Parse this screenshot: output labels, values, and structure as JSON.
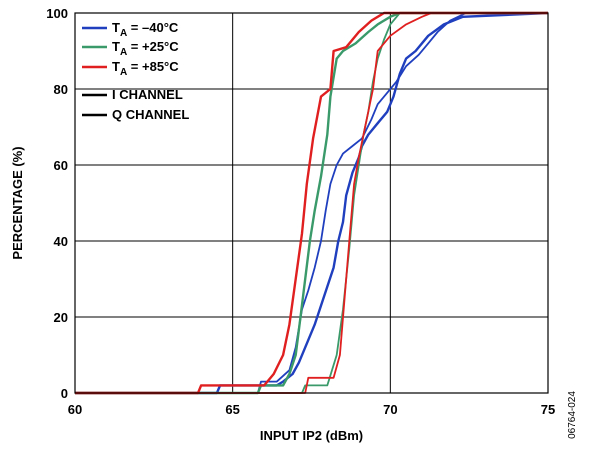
{
  "chart_data": {
    "type": "line",
    "xlabel": "INPUT IP2 (dBm)",
    "ylabel": "PERCENTAGE (%)",
    "xlim": [
      60,
      75
    ],
    "ylim": [
      0,
      100
    ],
    "x_ticks": [
      60,
      65,
      70,
      75
    ],
    "y_ticks": [
      0,
      20,
      40,
      60,
      80,
      100
    ],
    "grid": true,
    "legend_position": "top-left",
    "figure_id": "06764-024",
    "legend": [
      {
        "id": "ta_m40",
        "sub": "A",
        "label_rest": " = –40°C",
        "color": "#1f3fbf"
      },
      {
        "id": "ta_25",
        "sub": "A",
        "label_rest": " = +25°C",
        "color": "#3a9a6a"
      },
      {
        "id": "ta_85",
        "sub": "A",
        "label_rest": " = +85°C",
        "color": "#e02020"
      },
      {
        "id": "i_ch",
        "label": "I CHANNEL",
        "color": "#000000"
      },
      {
        "id": "q_ch",
        "label": "Q CHANNEL",
        "color": "#000000"
      }
    ],
    "series": [
      {
        "temp": "ta_m40",
        "channel": "I",
        "color": "#1f3fbf",
        "points": [
          [
            60,
            0
          ],
          [
            64.5,
            0
          ],
          [
            64.6,
            2
          ],
          [
            66.4,
            2
          ],
          [
            66.6,
            3
          ],
          [
            66.9,
            5
          ],
          [
            67.1,
            8
          ],
          [
            67.3,
            12
          ],
          [
            67.6,
            18
          ],
          [
            67.8,
            23
          ],
          [
            68.0,
            28
          ],
          [
            68.2,
            33
          ],
          [
            68.35,
            40
          ],
          [
            68.5,
            45
          ],
          [
            68.6,
            52
          ],
          [
            68.8,
            58
          ],
          [
            69.0,
            62
          ],
          [
            69.1,
            65
          ],
          [
            69.3,
            68
          ],
          [
            69.6,
            71
          ],
          [
            69.9,
            74
          ],
          [
            70.1,
            78
          ],
          [
            70.3,
            84
          ],
          [
            70.5,
            88
          ],
          [
            70.8,
            90
          ],
          [
            71.2,
            94
          ],
          [
            71.7,
            97
          ],
          [
            72.3,
            99
          ],
          [
            75,
            100
          ]
        ]
      },
      {
        "temp": "ta_m40",
        "channel": "Q",
        "color": "#1f3fbf",
        "points": [
          [
            60,
            0
          ],
          [
            65.8,
            0
          ],
          [
            65.9,
            3
          ],
          [
            66.4,
            3
          ],
          [
            66.8,
            6
          ],
          [
            67.0,
            12
          ],
          [
            67.2,
            22
          ],
          [
            67.4,
            27
          ],
          [
            67.6,
            33
          ],
          [
            67.8,
            40
          ],
          [
            67.95,
            48
          ],
          [
            68.1,
            55
          ],
          [
            68.3,
            60
          ],
          [
            68.5,
            63
          ],
          [
            68.8,
            65
          ],
          [
            69.1,
            67
          ],
          [
            69.4,
            72
          ],
          [
            69.6,
            76
          ],
          [
            69.9,
            79
          ],
          [
            70.2,
            82
          ],
          [
            70.5,
            86
          ],
          [
            70.9,
            89
          ],
          [
            71.2,
            92
          ],
          [
            71.5,
            95
          ],
          [
            71.9,
            98
          ],
          [
            72.4,
            100
          ],
          [
            75,
            100
          ]
        ]
      },
      {
        "temp": "ta_25",
        "channel": "I",
        "color": "#3a9a6a",
        "points": [
          [
            60,
            0
          ],
          [
            65.8,
            0
          ],
          [
            65.9,
            2
          ],
          [
            66.6,
            2
          ],
          [
            66.8,
            5
          ],
          [
            67.0,
            10
          ],
          [
            67.15,
            20
          ],
          [
            67.3,
            30
          ],
          [
            67.45,
            40
          ],
          [
            67.6,
            48
          ],
          [
            67.8,
            57
          ],
          [
            68.0,
            68
          ],
          [
            68.1,
            78
          ],
          [
            68.3,
            88
          ],
          [
            68.5,
            90
          ],
          [
            68.9,
            92
          ],
          [
            69.3,
            95
          ],
          [
            69.6,
            97
          ],
          [
            70.0,
            99
          ],
          [
            70.3,
            100
          ],
          [
            75,
            100
          ]
        ]
      },
      {
        "temp": "ta_25",
        "channel": "Q",
        "color": "#3a9a6a",
        "points": [
          [
            60,
            0
          ],
          [
            67.2,
            0
          ],
          [
            67.3,
            2
          ],
          [
            68.0,
            2
          ],
          [
            68.3,
            10
          ],
          [
            68.5,
            22
          ],
          [
            68.7,
            38
          ],
          [
            68.85,
            52
          ],
          [
            69.0,
            60
          ],
          [
            69.15,
            68
          ],
          [
            69.3,
            74
          ],
          [
            69.45,
            82
          ],
          [
            69.6,
            88
          ],
          [
            69.8,
            93
          ],
          [
            70.0,
            97
          ],
          [
            70.3,
            100
          ],
          [
            75,
            100
          ]
        ]
      },
      {
        "temp": "ta_85",
        "channel": "I",
        "color": "#e02020",
        "points": [
          [
            60,
            0
          ],
          [
            63.9,
            0
          ],
          [
            64.0,
            2
          ],
          [
            66.0,
            2
          ],
          [
            66.3,
            5
          ],
          [
            66.6,
            10
          ],
          [
            66.8,
            18
          ],
          [
            67.0,
            30
          ],
          [
            67.2,
            42
          ],
          [
            67.35,
            55
          ],
          [
            67.55,
            67
          ],
          [
            67.8,
            78
          ],
          [
            68.1,
            80
          ],
          [
            68.2,
            90
          ],
          [
            68.6,
            91
          ],
          [
            69.0,
            95
          ],
          [
            69.4,
            98
          ],
          [
            69.8,
            100
          ],
          [
            75,
            100
          ]
        ]
      },
      {
        "temp": "ta_85",
        "channel": "Q",
        "color": "#e02020",
        "points": [
          [
            60,
            0
          ],
          [
            67.3,
            0
          ],
          [
            67.4,
            4
          ],
          [
            68.2,
            4
          ],
          [
            68.4,
            10
          ],
          [
            68.55,
            25
          ],
          [
            68.7,
            40
          ],
          [
            68.85,
            55
          ],
          [
            69.0,
            62
          ],
          [
            69.2,
            70
          ],
          [
            69.45,
            80
          ],
          [
            69.6,
            90
          ],
          [
            70.0,
            94
          ],
          [
            70.5,
            97
          ],
          [
            71.0,
            99
          ],
          [
            71.3,
            100
          ],
          [
            75,
            100
          ]
        ]
      }
    ]
  }
}
